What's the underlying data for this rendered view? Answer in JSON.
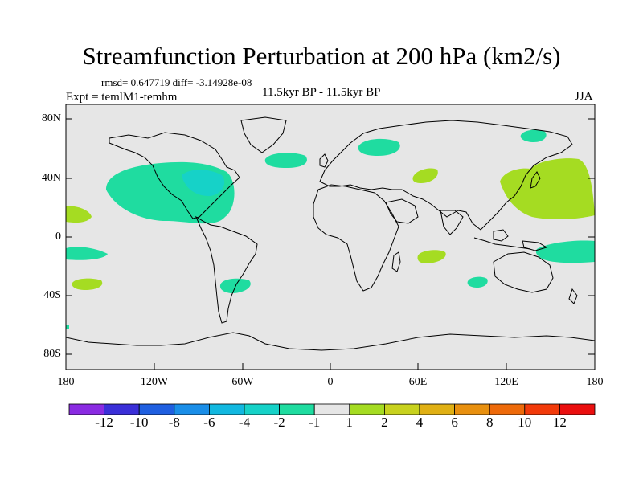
{
  "title": "Streamfunction Perturbation at 200 hPa (km2/s)",
  "stats": "rmsd= 0.647719 diff= -3.14928e-08",
  "experiment": "Expt = temlM1-temhm",
  "period": "11.5kyr BP - 11.5kyr BP",
  "season": "JJA",
  "y_axis_labels": [
    "80N",
    "40N",
    "0",
    "40S",
    "80S"
  ],
  "x_axis_labels": [
    "180",
    "120W",
    "60W",
    "0",
    "60E",
    "120E",
    "180"
  ],
  "colorbar": {
    "labels": [
      "-12",
      "-10",
      "-8",
      "-6",
      "-4",
      "-2",
      "-1",
      "1",
      "2",
      "4",
      "6",
      "8",
      "10",
      "12"
    ],
    "colors": [
      "#8a2be2",
      "#3a2fd8",
      "#1f5fe0",
      "#1a8ee8",
      "#12b8e0",
      "#16d2c8",
      "#1fdca0",
      "#e6e6e6",
      "#a5dc22",
      "#c8d21e",
      "#e0b014",
      "#e8900f",
      "#ee6a0a",
      "#f23a0a",
      "#ea0f0f"
    ]
  },
  "chart_data": {
    "type": "heatmap",
    "variable": "Streamfunction Perturbation at 200 hPa",
    "units": "km2/s",
    "lon_range": [
      -180,
      180
    ],
    "lat_range": [
      -90,
      90
    ],
    "levels": [
      -12,
      -10,
      -8,
      -6,
      -4,
      -2,
      -1,
      1,
      2,
      4,
      6,
      8,
      10,
      12
    ],
    "anomaly_regions": [
      {
        "name": "north-pacific-american-negative",
        "sign": "negative",
        "class": "-2 to -1",
        "center": [
          -115,
          35
        ]
      },
      {
        "name": "great-lakes-core",
        "sign": "negative",
        "class": "-4 to -2",
        "center": [
          -85,
          42
        ]
      },
      {
        "name": "north-atlantic-negative",
        "sign": "negative",
        "class": "-2 to -1",
        "center": [
          -25,
          52
        ]
      },
      {
        "name": "eastern-europe-negative",
        "sign": "negative",
        "class": "-2 to -1",
        "center": [
          35,
          63
        ]
      },
      {
        "name": "arctic-east-siberia-negative",
        "sign": "negative",
        "class": "-2 to -1",
        "center": [
          145,
          72
        ]
      },
      {
        "name": "central-pacific-negative",
        "sign": "negative",
        "class": "-2 to -1",
        "center": [
          -150,
          -12
        ]
      },
      {
        "name": "south-america-negative",
        "sign": "negative",
        "class": "-2 to -1",
        "center": [
          -62,
          -30
        ]
      },
      {
        "name": "west-pacific-tropical-negative",
        "sign": "negative",
        "class": "-2 to -1",
        "center": [
          150,
          -10
        ]
      },
      {
        "name": "indian-ocean-south-negative",
        "sign": "negative",
        "class": "-2 to -1",
        "center": [
          100,
          -28
        ]
      },
      {
        "name": "east-asia-positive",
        "sign": "positive",
        "class": "1 to 2",
        "center": [
          155,
          30
        ]
      },
      {
        "name": "arabia-positive",
        "sign": "positive",
        "class": "1 to 2",
        "center": [
          63,
          40
        ]
      },
      {
        "name": "indian-ocean-positive",
        "sign": "positive",
        "class": "1 to 2",
        "center": [
          70,
          -12
        ]
      },
      {
        "name": "east-pacific-positive",
        "sign": "positive",
        "class": "1 to 2",
        "center": [
          -172,
          15
        ]
      },
      {
        "name": "south-pacific-positive",
        "sign": "positive",
        "class": "1 to 2",
        "center": [
          -164,
          -30
        ]
      }
    ]
  }
}
